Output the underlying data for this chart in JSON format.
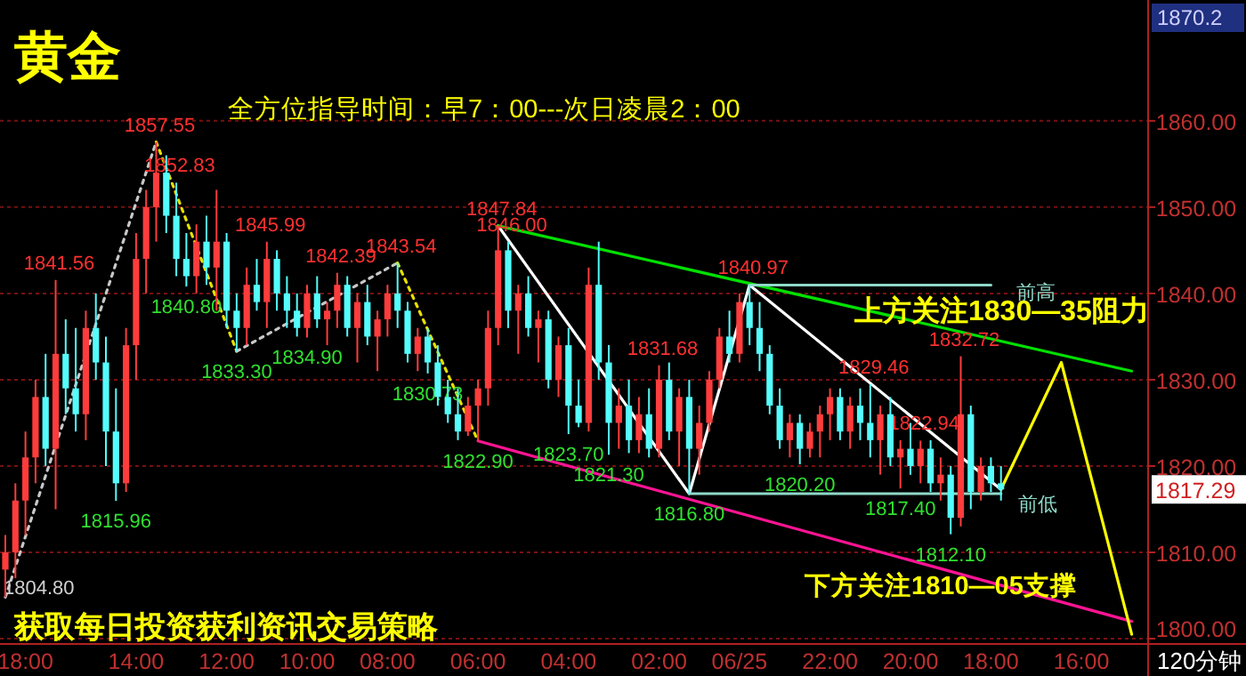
{
  "chart_data": {
    "type": "candlestick",
    "title": "黄金",
    "subtitle": "全方位指导时间：早7：00---次日凌晨2：00",
    "categories": [
      null,
      null,
      "18:00",
      null,
      null,
      null,
      null,
      null,
      null,
      null,
      null,
      null,
      null,
      "14:00",
      null,
      null,
      null,
      null,
      null,
      null,
      null,
      null,
      "12:00",
      null,
      null,
      null,
      null,
      null,
      null,
      null,
      "10:00",
      null,
      null,
      null,
      null,
      null,
      null,
      null,
      "08:00",
      null,
      null,
      null,
      null,
      null,
      null,
      null,
      null,
      "06:00",
      null,
      null,
      null,
      null,
      null,
      null,
      null,
      null,
      "04:00",
      null,
      null,
      null,
      null,
      null,
      null,
      null,
      null,
      "02:00",
      null,
      null,
      null,
      null,
      null,
      null,
      null,
      "06/25",
      null,
      null,
      null,
      null,
      null,
      null,
      null,
      null,
      "22:00",
      null,
      null,
      null,
      null,
      null,
      null,
      null,
      "20:00",
      null,
      null,
      null,
      null,
      null,
      null,
      null,
      "18:00",
      null,
      null,
      null,
      null,
      null,
      null,
      null,
      null,
      "16:00",
      null,
      null,
      null,
      null,
      null
    ],
    "ohlc": [
      [
        1808,
        1812,
        1804.8,
        1810
      ],
      [
        1810,
        1818,
        1807,
        1816
      ],
      [
        1816,
        1824,
        1812,
        1821
      ],
      [
        1821,
        1830,
        1818,
        1828
      ],
      [
        1828,
        1833,
        1820,
        1822
      ],
      [
        1822,
        1841.56,
        1815,
        1833
      ],
      [
        1833,
        1837,
        1826,
        1829
      ],
      [
        1829,
        1836,
        1824,
        1826
      ],
      [
        1826,
        1838,
        1823,
        1836
      ],
      [
        1836,
        1840,
        1830,
        1832
      ],
      [
        1832,
        1835,
        1820,
        1824
      ],
      [
        1824,
        1829,
        1815.96,
        1818
      ],
      [
        1818,
        1836,
        1817,
        1834
      ],
      [
        1834,
        1847,
        1830,
        1844
      ],
      [
        1844,
        1852,
        1840,
        1850
      ],
      [
        1850,
        1857.55,
        1846,
        1854
      ],
      [
        1854,
        1856,
        1847,
        1849
      ],
      [
        1849,
        1852.83,
        1842,
        1844
      ],
      [
        1844,
        1847,
        1840.8,
        1842
      ],
      [
        1842,
        1848,
        1840,
        1846
      ],
      [
        1846,
        1849,
        1841,
        1843
      ],
      [
        1843,
        1852,
        1838,
        1846
      ],
      [
        1846,
        1847,
        1836,
        1838
      ],
      [
        1838,
        1840,
        1833.3,
        1836
      ],
      [
        1836,
        1843,
        1834,
        1841
      ],
      [
        1841,
        1844,
        1838,
        1839
      ],
      [
        1839,
        1845.99,
        1836,
        1844
      ],
      [
        1844,
        1845,
        1838,
        1840
      ],
      [
        1840,
        1842,
        1836,
        1838
      ],
      [
        1838,
        1840,
        1835,
        1836
      ],
      [
        1836,
        1841,
        1834.9,
        1840
      ],
      [
        1840,
        1842,
        1836,
        1837
      ],
      [
        1837,
        1839,
        1834,
        1838
      ],
      [
        1838,
        1842.39,
        1836,
        1841
      ],
      [
        1841,
        1842,
        1835,
        1836
      ],
      [
        1836,
        1840,
        1832,
        1839
      ],
      [
        1839,
        1841,
        1834,
        1835
      ],
      [
        1835,
        1838,
        1831,
        1837
      ],
      [
        1837,
        1841,
        1835,
        1840
      ],
      [
        1840,
        1843.54,
        1836,
        1838
      ],
      [
        1838,
        1839,
        1832,
        1833
      ],
      [
        1833,
        1836,
        1831,
        1835
      ],
      [
        1835,
        1836,
        1830.73,
        1832
      ],
      [
        1832,
        1834,
        1827,
        1828
      ],
      [
        1828,
        1830,
        1825,
        1826
      ],
      [
        1826,
        1829,
        1823,
        1824
      ],
      [
        1824,
        1828,
        1823.5,
        1827
      ],
      [
        1827,
        1830,
        1822.9,
        1829
      ],
      [
        1829,
        1838,
        1827,
        1836
      ],
      [
        1836,
        1847.84,
        1834,
        1845
      ],
      [
        1845,
        1846,
        1836,
        1838
      ],
      [
        1838,
        1841,
        1833,
        1840
      ],
      [
        1840,
        1842,
        1835,
        1836
      ],
      [
        1836,
        1838,
        1832,
        1837
      ],
      [
        1837,
        1838,
        1829,
        1830
      ],
      [
        1830,
        1835,
        1828,
        1834
      ],
      [
        1834,
        1836,
        1823.7,
        1827
      ],
      [
        1827,
        1830,
        1824.5,
        1825
      ],
      [
        1825,
        1843,
        1824,
        1841
      ],
      [
        1841,
        1846.0,
        1830,
        1832
      ],
      [
        1832,
        1834,
        1821.3,
        1825
      ],
      [
        1825,
        1829,
        1822,
        1827
      ],
      [
        1827,
        1830,
        1821.5,
        1823
      ],
      [
        1823,
        1828,
        1821.5,
        1826
      ],
      [
        1826,
        1829,
        1821,
        1822
      ],
      [
        1822,
        1831.68,
        1821,
        1830
      ],
      [
        1830,
        1832,
        1823,
        1824
      ],
      [
        1824,
        1829,
        1820,
        1828
      ],
      [
        1828,
        1830,
        1816.8,
        1822
      ],
      [
        1822,
        1827,
        1819,
        1825
      ],
      [
        1825,
        1831,
        1824,
        1830
      ],
      [
        1830,
        1836,
        1829,
        1835
      ],
      [
        1835,
        1838,
        1832,
        1833
      ],
      [
        1833,
        1840,
        1832,
        1839
      ],
      [
        1839,
        1840.97,
        1834,
        1836
      ],
      [
        1836,
        1839,
        1831,
        1833
      ],
      [
        1833,
        1834,
        1826,
        1827
      ],
      [
        1827,
        1829,
        1822,
        1823
      ],
      [
        1823,
        1826,
        1821,
        1825
      ],
      [
        1825,
        1826,
        1820.2,
        1822
      ],
      [
        1822,
        1825,
        1821,
        1824
      ],
      [
        1824,
        1827,
        1821,
        1826
      ],
      [
        1826,
        1829,
        1823,
        1828
      ],
      [
        1828,
        1829,
        1823,
        1824
      ],
      [
        1824,
        1828,
        1822,
        1827
      ],
      [
        1827,
        1829,
        1823,
        1825
      ],
      [
        1825,
        1829.46,
        1821,
        1823
      ],
      [
        1823,
        1827,
        1819,
        1826
      ],
      [
        1826,
        1828,
        1820,
        1821
      ],
      [
        1821,
        1823,
        1817.4,
        1822
      ],
      [
        1822,
        1825,
        1819,
        1820
      ],
      [
        1820,
        1822.94,
        1818,
        1822
      ],
      [
        1822,
        1823,
        1817,
        1818
      ],
      [
        1818,
        1821,
        1816,
        1819
      ],
      [
        1819,
        1820,
        1812.1,
        1814
      ],
      [
        1814,
        1832.72,
        1813,
        1826
      ],
      [
        1826,
        1827,
        1815,
        1817
      ],
      [
        1817,
        1821,
        1816,
        1820
      ],
      [
        1820,
        1821,
        1817,
        1818
      ],
      [
        1818,
        1820,
        1816,
        1817.29
      ],
      null,
      null,
      null,
      null,
      null,
      null,
      null,
      null,
      null,
      null,
      null,
      null,
      null
    ],
    "colors": [
      "#ff3c3c",
      "#ff3c3c",
      "#ff3c3c",
      "#ff3c3c",
      "#54fcfc",
      "#ff3c3c",
      "#54fcfc",
      "#54fcfc",
      "#ff3c3c",
      "#54fcfc",
      "#54fcfc",
      "#54fcfc",
      "#ff3c3c",
      "#ff3c3c",
      "#ff3c3c",
      "#ff3c3c",
      "#54fcfc",
      "#54fcfc",
      "#54fcfc",
      "#ff3c3c",
      "#54fcfc",
      "#ff3c3c",
      "#54fcfc",
      "#54fcfc",
      "#ff3c3c",
      "#54fcfc",
      "#ff3c3c",
      "#54fcfc",
      "#54fcfc",
      "#54fcfc",
      "#ff3c3c",
      "#54fcfc",
      "#ff3c3c",
      "#ff3c3c",
      "#54fcfc",
      "#ff3c3c",
      "#54fcfc",
      "#ff3c3c",
      "#ff3c3c",
      "#54fcfc",
      "#54fcfc",
      "#ff3c3c",
      "#54fcfc",
      "#54fcfc",
      "#54fcfc",
      "#54fcfc",
      "#ff3c3c",
      "#ff3c3c",
      "#ff3c3c",
      "#ff3c3c",
      "#54fcfc",
      "#ff3c3c",
      "#54fcfc",
      "#ff3c3c",
      "#54fcfc",
      "#ff3c3c",
      "#54fcfc",
      "#54fcfc",
      "#ff3c3c",
      "#54fcfc",
      "#54fcfc",
      "#ff3c3c",
      "#54fcfc",
      "#ff3c3c",
      "#54fcfc",
      "#ff3c3c",
      "#54fcfc",
      "#ff3c3c",
      "#54fcfc",
      "#ff3c3c",
      "#ff3c3c",
      "#ff3c3c",
      "#54fcfc",
      "#ff3c3c",
      "#54fcfc",
      "#54fcfc",
      "#54fcfc",
      "#54fcfc",
      "#ff3c3c",
      "#54fcfc",
      "#ff3c3c",
      "#ff3c3c",
      "#ff3c3c",
      "#54fcfc",
      "#ff3c3c",
      "#54fcfc",
      "#54fcfc",
      "#ff3c3c",
      "#54fcfc",
      "#ff3c3c",
      "#54fcfc",
      "#ff3c3c",
      "#54fcfc",
      "#ff3c3c",
      "#54fcfc",
      "#ff3c3c",
      "#54fcfc",
      "#ff3c3c",
      "#54fcfc",
      "#54fcfc",
      null,
      null,
      null,
      null,
      null,
      null,
      null,
      null,
      null,
      null,
      null,
      null,
      null
    ],
    "ylim": [
      1800,
      1874
    ],
    "yticks": [
      {
        "value": 1800,
        "label": "1800.00"
      },
      {
        "value": 1810,
        "label": "1810.00"
      },
      {
        "value": 1820,
        "label": "1820.00"
      },
      {
        "value": 1830,
        "label": "1830.00"
      },
      {
        "value": 1840,
        "label": "1840.00"
      },
      {
        "value": 1850,
        "label": "1850.00"
      },
      {
        "value": 1860,
        "label": "1860.00"
      }
    ],
    "grid": "y",
    "series": [
      {
        "type": "line",
        "color": "#c8c8c8",
        "line_style": "dotted",
        "values": [
          1804.8,
          null,
          null,
          null,
          null,
          null,
          null,
          null,
          null,
          null,
          null,
          null,
          null,
          null,
          null,
          1857.55,
          null,
          null,
          null,
          null,
          null,
          null,
          null,
          null,
          null,
          null,
          null,
          null,
          null,
          null,
          null,
          null,
          null,
          null,
          null,
          null,
          null,
          null,
          null,
          null,
          null,
          null,
          null,
          null,
          null,
          null,
          null,
          null,
          null,
          null,
          null,
          null,
          null,
          null,
          null,
          null,
          null,
          null,
          null,
          null,
          null,
          null,
          null,
          null,
          null,
          null,
          null,
          null,
          null,
          null,
          null,
          null,
          null,
          null,
          null,
          null,
          null,
          null,
          null,
          null,
          null,
          null,
          null,
          null,
          null,
          null,
          null,
          null,
          null,
          null,
          null,
          null,
          null,
          null,
          null,
          null,
          null,
          null,
          null,
          null,
          null,
          null,
          null,
          null,
          null,
          null,
          null,
          null,
          null,
          null,
          null,
          null,
          null
        ]
      },
      {
        "type": "line",
        "color": "#e8e000",
        "line_style": "dotted",
        "values": [
          null,
          null,
          null,
          null,
          null,
          null,
          null,
          null,
          null,
          null,
          null,
          null,
          null,
          null,
          null,
          1857.55,
          null,
          null,
          null,
          null,
          null,
          null,
          null,
          1833.3,
          null,
          null,
          null,
          null,
          null,
          null,
          null,
          null,
          null,
          null,
          null,
          null,
          null,
          null,
          null,
          null,
          null,
          null,
          null,
          null,
          null,
          null,
          null,
          null,
          null,
          null,
          null,
          null,
          null,
          null,
          null,
          null,
          null,
          null,
          null,
          null,
          null,
          null,
          null,
          null,
          null,
          null,
          null,
          null,
          null,
          null,
          null,
          null,
          null,
          null,
          null,
          null,
          null,
          null,
          null,
          null,
          null,
          null,
          null,
          null,
          null,
          null,
          null,
          null,
          null,
          null,
          null,
          null,
          null,
          null,
          null,
          null,
          null,
          null,
          null,
          null,
          null,
          null,
          null,
          null,
          null,
          null,
          null,
          null,
          null,
          null,
          null,
          null,
          null
        ]
      },
      {
        "type": "line",
        "color": "#c8c8c8",
        "line_style": "dotted",
        "values": [
          null,
          null,
          null,
          null,
          null,
          null,
          null,
          null,
          null,
          null,
          null,
          null,
          null,
          null,
          null,
          null,
          null,
          null,
          null,
          null,
          null,
          null,
          null,
          1833.3,
          null,
          null,
          null,
          null,
          null,
          null,
          null,
          null,
          null,
          null,
          null,
          null,
          null,
          null,
          null,
          1843.54,
          null,
          null,
          null,
          null,
          null,
          null,
          null,
          null,
          null,
          null,
          null,
          null,
          null,
          null,
          null,
          null,
          null,
          null,
          null,
          null,
          null,
          null,
          null,
          null,
          null,
          null,
          null,
          null,
          null,
          null,
          null,
          null,
          null,
          null,
          null,
          null,
          null,
          null,
          null,
          null,
          null,
          null,
          null,
          null,
          null,
          null,
          null,
          null,
          null,
          null,
          null,
          null,
          null,
          null,
          null,
          null,
          null,
          null,
          null,
          null,
          null,
          null,
          null,
          null,
          null,
          null,
          null,
          null,
          null,
          null,
          null,
          null,
          null
        ]
      },
      {
        "type": "line",
        "color": "#e8e000",
        "line_style": "dotted",
        "values": [
          null,
          null,
          null,
          null,
          null,
          null,
          null,
          null,
          null,
          null,
          null,
          null,
          null,
          null,
          null,
          null,
          null,
          null,
          null,
          null,
          null,
          null,
          null,
          null,
          null,
          null,
          null,
          null,
          null,
          null,
          null,
          null,
          null,
          null,
          null,
          null,
          null,
          null,
          null,
          1843.54,
          null,
          null,
          null,
          null,
          null,
          null,
          null,
          1822.9,
          null,
          null,
          null,
          null,
          null,
          null,
          null,
          null,
          null,
          null,
          null,
          null,
          null,
          null,
          null,
          null,
          null,
          null,
          null,
          null,
          null,
          null,
          null,
          null,
          null,
          null,
          null,
          null,
          null,
          null,
          null,
          null,
          null,
          null,
          null,
          null,
          null,
          null,
          null,
          null,
          null,
          null,
          null,
          null,
          null,
          null,
          null,
          null,
          null,
          null,
          null,
          null,
          null,
          null,
          null,
          null,
          null,
          null,
          null,
          null,
          null,
          null,
          null,
          null,
          null
        ]
      },
      {
        "type": "line",
        "color": "#ffffff",
        "line_style": "solid",
        "values": [
          null,
          null,
          null,
          null,
          null,
          null,
          null,
          null,
          null,
          null,
          null,
          null,
          null,
          null,
          null,
          null,
          null,
          null,
          null,
          null,
          null,
          null,
          null,
          null,
          null,
          null,
          null,
          null,
          null,
          null,
          null,
          null,
          null,
          null,
          null,
          null,
          null,
          null,
          null,
          null,
          null,
          null,
          null,
          null,
          null,
          null,
          null,
          null,
          null,
          1847.84,
          null,
          null,
          null,
          null,
          null,
          null,
          null,
          null,
          null,
          null,
          null,
          null,
          null,
          null,
          null,
          null,
          null,
          null,
          1816.8,
          null,
          null,
          null,
          null,
          null,
          1840.97,
          null,
          null,
          null,
          null,
          null,
          null,
          null,
          null,
          null,
          null,
          null,
          null,
          null,
          null,
          null,
          null,
          null,
          null,
          null,
          null,
          null,
          null,
          null,
          null,
          1817.29,
          null,
          null,
          null,
          null,
          null,
          null,
          null,
          null,
          null,
          null,
          null,
          null,
          null
        ]
      },
      {
        "type": "line",
        "color": "#00e000",
        "line_style": "solid",
        "values": [
          null,
          null,
          null,
          null,
          null,
          null,
          null,
          null,
          null,
          null,
          null,
          null,
          null,
          null,
          null,
          null,
          null,
          null,
          null,
          null,
          null,
          null,
          null,
          null,
          null,
          null,
          null,
          null,
          null,
          null,
          null,
          null,
          null,
          null,
          null,
          null,
          null,
          null,
          null,
          null,
          null,
          null,
          null,
          null,
          null,
          null,
          null,
          null,
          null,
          1847.84,
          null,
          null,
          null,
          null,
          null,
          null,
          null,
          null,
          null,
          null,
          null,
          null,
          null,
          null,
          null,
          null,
          null,
          null,
          null,
          null,
          null,
          null,
          null,
          null,
          null,
          null,
          null,
          null,
          null,
          null,
          null,
          null,
          null,
          null,
          null,
          null,
          null,
          null,
          null,
          null,
          null,
          null,
          null,
          null,
          null,
          null,
          null,
          null,
          null,
          null,
          null,
          null,
          null,
          null,
          null,
          null,
          null,
          null,
          null,
          null,
          null,
          null,
          1831
        ]
      },
      {
        "type": "line",
        "color": "#ff1493",
        "line_style": "solid",
        "values": [
          null,
          null,
          null,
          null,
          null,
          null,
          null,
          null,
          null,
          null,
          null,
          null,
          null,
          null,
          null,
          null,
          null,
          null,
          null,
          null,
          null,
          null,
          null,
          null,
          null,
          null,
          null,
          null,
          null,
          null,
          null,
          null,
          null,
          null,
          null,
          null,
          null,
          null,
          null,
          null,
          null,
          null,
          null,
          null,
          null,
          null,
          null,
          1822.9,
          null,
          null,
          null,
          null,
          null,
          null,
          null,
          null,
          null,
          null,
          null,
          null,
          null,
          null,
          null,
          null,
          null,
          null,
          null,
          null,
          null,
          null,
          null,
          null,
          null,
          null,
          null,
          null,
          null,
          null,
          null,
          null,
          null,
          null,
          null,
          null,
          null,
          null,
          null,
          null,
          null,
          null,
          null,
          null,
          null,
          null,
          null,
          null,
          null,
          null,
          null,
          null,
          null,
          null,
          null,
          null,
          null,
          null,
          null,
          null,
          null,
          null,
          null,
          null,
          1802
        ]
      },
      {
        "type": "line",
        "color": "#8fd9c8",
        "line_style": "solid",
        "values": [
          null,
          null,
          null,
          null,
          null,
          null,
          null,
          null,
          null,
          null,
          null,
          null,
          null,
          null,
          null,
          null,
          null,
          null,
          null,
          null,
          null,
          null,
          null,
          null,
          null,
          null,
          null,
          null,
          null,
          null,
          null,
          null,
          null,
          null,
          null,
          null,
          null,
          null,
          null,
          null,
          null,
          null,
          null,
          null,
          null,
          null,
          null,
          null,
          null,
          null,
          null,
          null,
          null,
          null,
          null,
          null,
          null,
          null,
          null,
          null,
          null,
          null,
          null,
          null,
          null,
          null,
          null,
          null,
          null,
          null,
          null,
          null,
          null,
          null,
          1840.97,
          null,
          null,
          null,
          null,
          null,
          null,
          null,
          null,
          null,
          null,
          null,
          null,
          null,
          null,
          null,
          null,
          null,
          null,
          null,
          null,
          null,
          null,
          null,
          1840.97,
          null,
          null,
          null,
          null,
          null,
          null,
          null,
          null,
          null,
          null,
          null,
          null,
          null,
          null
        ]
      },
      {
        "type": "line",
        "color": "#8fd9c8",
        "line_style": "solid",
        "values": [
          null,
          null,
          null,
          null,
          null,
          null,
          null,
          null,
          null,
          null,
          null,
          null,
          null,
          null,
          null,
          null,
          null,
          null,
          null,
          null,
          null,
          null,
          null,
          null,
          null,
          null,
          null,
          null,
          null,
          null,
          null,
          null,
          null,
          null,
          null,
          null,
          null,
          null,
          null,
          null,
          null,
          null,
          null,
          null,
          null,
          null,
          null,
          null,
          null,
          null,
          null,
          null,
          null,
          null,
          null,
          null,
          null,
          null,
          null,
          null,
          null,
          null,
          null,
          null,
          null,
          null,
          null,
          null,
          1816.8,
          null,
          null,
          null,
          null,
          null,
          null,
          null,
          null,
          null,
          null,
          null,
          null,
          null,
          null,
          null,
          null,
          null,
          null,
          null,
          null,
          null,
          null,
          null,
          null,
          null,
          null,
          null,
          null,
          null,
          null,
          1816.8,
          null,
          null,
          null,
          null,
          null,
          null,
          null,
          null,
          null,
          null,
          null,
          null,
          null
        ]
      },
      {
        "type": "line",
        "color": "#ffff00",
        "line_style": "solid",
        "values": [
          null,
          null,
          null,
          null,
          null,
          null,
          null,
          null,
          null,
          null,
          null,
          null,
          null,
          null,
          null,
          null,
          null,
          null,
          null,
          null,
          null,
          null,
          null,
          null,
          null,
          null,
          null,
          null,
          null,
          null,
          null,
          null,
          null,
          null,
          null,
          null,
          null,
          null,
          null,
          null,
          null,
          null,
          null,
          null,
          null,
          null,
          null,
          null,
          null,
          null,
          null,
          null,
          null,
          null,
          null,
          null,
          null,
          null,
          null,
          null,
          null,
          null,
          null,
          null,
          null,
          null,
          null,
          null,
          null,
          null,
          null,
          null,
          null,
          null,
          null,
          null,
          null,
          null,
          null,
          null,
          null,
          null,
          null,
          null,
          null,
          null,
          null,
          null,
          null,
          null,
          null,
          null,
          null,
          null,
          null,
          null,
          null,
          null,
          null,
          1817.29,
          null,
          null,
          null,
          null,
          null,
          1832,
          null,
          null,
          null,
          null,
          null,
          null,
          1800.5
        ]
      }
    ],
    "annotations": [
      {
        "text": "1841.56",
        "y": 1841.56
      },
      {
        "text": "1815.96",
        "y": 1815.96
      },
      {
        "text": "1857.55",
        "y": 1857.55
      },
      {
        "text": "1852.83",
        "y": 1852.83
      },
      {
        "text": "1840.80",
        "y": 1840.8
      },
      {
        "text": "1845.99",
        "y": 1845.99
      },
      {
        "text": "1833.30",
        "y": 1833.3
      },
      {
        "text": "1834.90",
        "y": 1834.9
      },
      {
        "text": "1842.39",
        "y": 1842.39
      },
      {
        "text": "1843.54",
        "y": 1843.54
      },
      {
        "text": "1830.73",
        "y": 1830.73
      },
      {
        "text": "1822.90",
        "y": 1822.9
      },
      {
        "text": "1847.84",
        "y": 1847.84
      },
      {
        "text": "1846.00",
        "y": 1846.0
      },
      {
        "text": "1823.70",
        "y": 1823.7
      },
      {
        "text": "1821.30",
        "y": 1821.3
      },
      {
        "text": "1816.80",
        "y": 1816.8
      },
      {
        "text": "1831.68",
        "y": 1831.68
      },
      {
        "text": "1840.97",
        "y": 1840.97
      },
      {
        "text": "1820.20",
        "y": 1820.2
      },
      {
        "text": "1829.46",
        "y": 1829.46
      },
      {
        "text": "1822.94",
        "y": 1822.94
      },
      {
        "text": "1817.40",
        "y": 1817.4
      },
      {
        "text": "1832.72",
        "y": 1832.72
      },
      {
        "text": "1812.10",
        "y": 1812.1
      },
      "上方关注1830—35阻力",
      "下方关注1810—05支撑",
      "前高",
      "前低",
      "获取每日投资获利资讯交易策略",
      "120分钟",
      "1870.2",
      "1804.80",
      "1817.29"
    ]
  }
}
